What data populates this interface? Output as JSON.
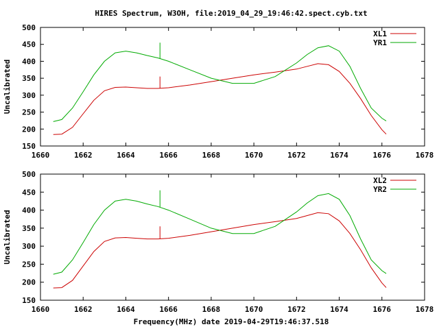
{
  "figure_title": "HIRES Spectrum, W3OH, file:2019_04_29_19:46:42.spect.cyb.txt",
  "xlabel": "Frequency(MHz) date 2019-04-29T19:46:37.518",
  "colors": {
    "red": "#cc0000",
    "green": "#00aa00",
    "axis": "#000000"
  },
  "chart_data": [
    {
      "type": "line",
      "title": "HIRES Spectrum, W3OH, file:2019_04_29_19:46:42.spect.cyb.txt",
      "xlabel": "",
      "ylabel": "Uncalibrated",
      "xlim": [
        1660,
        1678
      ],
      "ylim": [
        150,
        500
      ],
      "xticks": [
        "1660",
        "1662",
        "1664",
        "1666",
        "1668",
        "1670",
        "1672",
        "1674",
        "1676",
        "1678"
      ],
      "yticks": [
        "150",
        "200",
        "250",
        "300",
        "350",
        "400",
        "450",
        "500"
      ],
      "grid": false,
      "legend": "top-right",
      "spike": {
        "x": 1665.6,
        "series_peaks": {
          "XL1": 355,
          "YR1": 455
        }
      },
      "series": [
        {
          "name": "XL1",
          "color": "#cc0000",
          "x": [
            1660.6,
            1661.0,
            1661.5,
            1662.0,
            1662.5,
            1663.0,
            1663.5,
            1664.0,
            1664.5,
            1665.0,
            1665.5,
            1666.0,
            1667.0,
            1668.0,
            1669.0,
            1670.0,
            1671.0,
            1672.0,
            1672.5,
            1673.0,
            1673.5,
            1674.0,
            1674.5,
            1675.0,
            1675.5,
            1676.0,
            1676.2
          ],
          "values": [
            184,
            185,
            205,
            245,
            285,
            313,
            323,
            324,
            322,
            320,
            320,
            322,
            330,
            340,
            350,
            360,
            368,
            377,
            385,
            393,
            390,
            370,
            335,
            290,
            240,
            198,
            185
          ]
        },
        {
          "name": "YR1",
          "color": "#00aa00",
          "x": [
            1660.6,
            1661.0,
            1661.5,
            1662.0,
            1662.5,
            1663.0,
            1663.5,
            1664.0,
            1664.5,
            1665.0,
            1665.5,
            1666.0,
            1667.0,
            1668.0,
            1669.0,
            1670.0,
            1671.0,
            1672.0,
            1672.5,
            1673.0,
            1673.5,
            1674.0,
            1674.5,
            1675.0,
            1675.5,
            1676.0,
            1676.2
          ],
          "values": [
            222,
            228,
            262,
            310,
            360,
            400,
            425,
            430,
            425,
            417,
            410,
            400,
            375,
            350,
            335,
            335,
            355,
            395,
            420,
            440,
            446,
            430,
            385,
            320,
            262,
            232,
            224
          ]
        }
      ]
    },
    {
      "type": "line",
      "title": "",
      "xlabel": "Frequency(MHz) date 2019-04-29T19:46:37.518",
      "ylabel": "Uncalibrated",
      "xlim": [
        1660,
        1678
      ],
      "ylim": [
        150,
        500
      ],
      "xticks": [
        "1660",
        "1662",
        "1664",
        "1666",
        "1668",
        "1670",
        "1672",
        "1674",
        "1676",
        "1678"
      ],
      "yticks": [
        "150",
        "200",
        "250",
        "300",
        "350",
        "400",
        "450",
        "500"
      ],
      "grid": false,
      "legend": "top-right",
      "spike": {
        "x": 1665.6,
        "series_peaks": {
          "XL2": 355,
          "YR2": 455
        }
      },
      "series": [
        {
          "name": "XL2",
          "color": "#cc0000",
          "x": [
            1660.6,
            1661.0,
            1661.5,
            1662.0,
            1662.5,
            1663.0,
            1663.5,
            1664.0,
            1664.5,
            1665.0,
            1665.5,
            1666.0,
            1667.0,
            1668.0,
            1669.0,
            1670.0,
            1671.0,
            1672.0,
            1672.5,
            1673.0,
            1673.5,
            1674.0,
            1674.5,
            1675.0,
            1675.5,
            1676.0,
            1676.2
          ],
          "values": [
            184,
            185,
            205,
            245,
            285,
            313,
            323,
            324,
            322,
            320,
            320,
            322,
            330,
            340,
            350,
            360,
            368,
            377,
            385,
            393,
            390,
            370,
            335,
            290,
            240,
            198,
            185
          ]
        },
        {
          "name": "YR2",
          "color": "#00aa00",
          "x": [
            1660.6,
            1661.0,
            1661.5,
            1662.0,
            1662.5,
            1663.0,
            1663.5,
            1664.0,
            1664.5,
            1665.0,
            1665.5,
            1666.0,
            1667.0,
            1668.0,
            1669.0,
            1670.0,
            1671.0,
            1672.0,
            1672.5,
            1673.0,
            1673.5,
            1674.0,
            1674.5,
            1675.0,
            1675.5,
            1676.0,
            1676.2
          ],
          "values": [
            222,
            228,
            262,
            310,
            360,
            400,
            425,
            430,
            425,
            417,
            410,
            400,
            375,
            350,
            335,
            335,
            355,
            395,
            420,
            440,
            446,
            430,
            385,
            320,
            262,
            232,
            224
          ]
        }
      ]
    }
  ]
}
